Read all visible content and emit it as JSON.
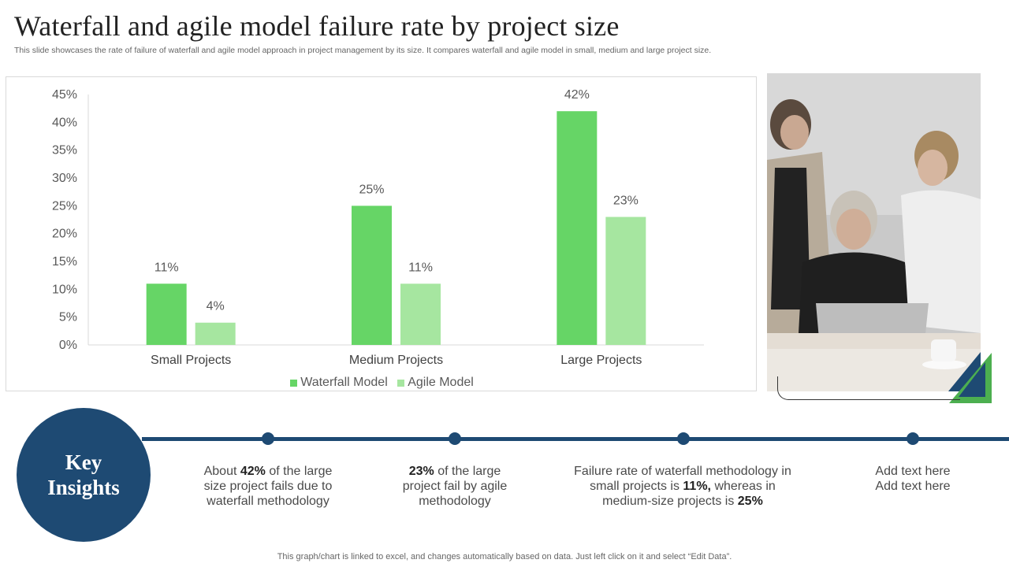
{
  "header": {
    "title": "Waterfall and agile model failure rate by project size",
    "subtitle": "This slide showcases the rate of failure of waterfall and agile model approach in project management by its size. It compares waterfall and agile model in small, medium and large project size."
  },
  "chart_data": {
    "type": "bar",
    "title": "",
    "xlabel": "",
    "ylabel": "",
    "categories": [
      "Small Projects",
      "Medium Projects",
      "Large Projects"
    ],
    "series": [
      {
        "name": "Waterfall Model",
        "values": [
          11,
          25,
          42
        ],
        "color": "#66d566"
      },
      {
        "name": "Agile Model",
        "values": [
          4,
          11,
          23
        ],
        "color": "#a6e6a0"
      }
    ],
    "ylim": [
      0,
      45
    ],
    "yticks": [
      0,
      5,
      10,
      15,
      20,
      25,
      30,
      35,
      40,
      45
    ],
    "value_suffix": "%",
    "legend_position": "bottom",
    "grid": false
  },
  "insights": {
    "circle_line1": "Key",
    "circle_line2": "Insights",
    "items": [
      {
        "pre": "About ",
        "bold": "42%",
        "post": " of the large size project fails due to waterfall methodology"
      },
      {
        "pre": "",
        "bold": "23%",
        "post": " of the large project fail by agile methodology"
      },
      {
        "pre": "Failure rate of waterfall methodology in small projects is ",
        "bold": "11%,",
        "mid": " whereas in medium-size projects is ",
        "bold2": "25%"
      },
      {
        "line1": "Add text here",
        "line2": "Add text here"
      }
    ]
  },
  "footer": {
    "note": "This graph/chart is linked to excel,  and changes automatically based on data. Just left click on it and select “Edit Data”."
  },
  "colors": {
    "accent": "#1e4a73",
    "waterfall": "#66d566",
    "agile": "#a6e6a0"
  }
}
